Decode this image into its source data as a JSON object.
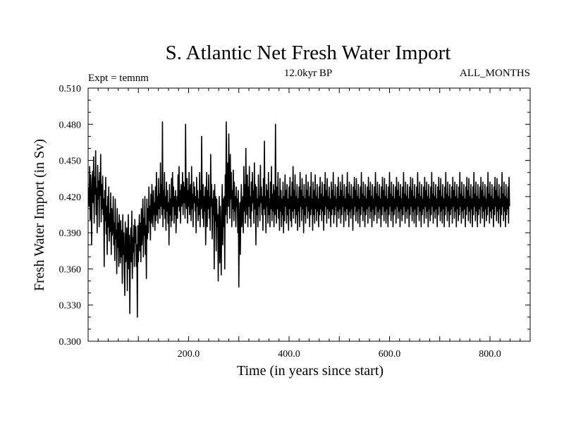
{
  "chart_data": {
    "type": "line",
    "title": "S. Atlantic Net Fresh Water Import",
    "subtitle_left": "Expt = temnm",
    "subtitle_center": "12.0kyr BP",
    "subtitle_right": "ALL_MONTHS",
    "xlabel": "Time (in years since start)",
    "ylabel": "Fresh Water Import (in Sv)",
    "xlim": [
      0,
      880
    ],
    "ylim": [
      0.3,
      0.51
    ],
    "x_ticks": [
      200,
      400,
      600,
      800
    ],
    "x_tick_labels": [
      "200.0",
      "400.0",
      "600.0",
      "800.0"
    ],
    "y_ticks": [
      0.3,
      0.33,
      0.36,
      0.39,
      0.42,
      0.45,
      0.48,
      0.51
    ],
    "y_tick_labels": [
      "0.300",
      "0.330",
      "0.360",
      "0.390",
      "0.420",
      "0.450",
      "0.480",
      "0.510"
    ],
    "series": [
      {
        "name": "Net fresh water import",
        "x_start": 1,
        "x_step": 1,
        "values": [
          0.428,
          0.412,
          0.445,
          0.401,
          0.438,
          0.419,
          0.38,
          0.432,
          0.441,
          0.415,
          0.453,
          0.398,
          0.436,
          0.422,
          0.458,
          0.405,
          0.427,
          0.39,
          0.446,
          0.418,
          0.433,
          0.395,
          0.44,
          0.421,
          0.455,
          0.399,
          0.43,
          0.41,
          0.437,
          0.405,
          0.418,
          0.362,
          0.425,
          0.4,
          0.436,
          0.389,
          0.412,
          0.372,
          0.42,
          0.395,
          0.428,
          0.383,
          0.406,
          0.391,
          0.423,
          0.372,
          0.41,
          0.388,
          0.395,
          0.42,
          0.38,
          0.398,
          0.367,
          0.418,
          0.385,
          0.392,
          0.356,
          0.41,
          0.378,
          0.398,
          0.362,
          0.405,
          0.389,
          0.365,
          0.4,
          0.37,
          0.392,
          0.348,
          0.405,
          0.372,
          0.39,
          0.358,
          0.338,
          0.399,
          0.366,
          0.378,
          0.394,
          0.342,
          0.38,
          0.405,
          0.36,
          0.388,
          0.323,
          0.371,
          0.394,
          0.366,
          0.408,
          0.352,
          0.386,
          0.374,
          0.396,
          0.362,
          0.401,
          0.382,
          0.395,
          0.362,
          0.38,
          0.32,
          0.396,
          0.366,
          0.389,
          0.405,
          0.375,
          0.398,
          0.366,
          0.41,
          0.38,
          0.395,
          0.418,
          0.37,
          0.402,
          0.388,
          0.42,
          0.372,
          0.396,
          0.352,
          0.418,
          0.385,
          0.41,
          0.39,
          0.428,
          0.4,
          0.412,
          0.384,
          0.422,
          0.398,
          0.43,
          0.408,
          0.395,
          0.425,
          0.405,
          0.415,
          0.392,
          0.428,
          0.4,
          0.44,
          0.405,
          0.42,
          0.398,
          0.435,
          0.41,
          0.422,
          0.402,
          0.448,
          0.412,
          0.43,
          0.405,
          0.482,
          0.395,
          0.425,
          0.41,
          0.44,
          0.402,
          0.42,
          0.392,
          0.432,
          0.408,
          0.425,
          0.398,
          0.415,
          0.38,
          0.43,
          0.405,
          0.418,
          0.395,
          0.435,
          0.4,
          0.44,
          0.412,
          0.428,
          0.398,
          0.42,
          0.405,
          0.425,
          0.39,
          0.41,
          0.42,
          0.402,
          0.438,
          0.412,
          0.445,
          0.408,
          0.425,
          0.398,
          0.43,
          0.412,
          0.418,
          0.44,
          0.405,
          0.432,
          0.415,
          0.428,
          0.402,
          0.48,
          0.42,
          0.41,
          0.435,
          0.398,
          0.425,
          0.412,
          0.44,
          0.405,
          0.418,
          0.43,
          0.4,
          0.445,
          0.41,
          0.422,
          0.395,
          0.432,
          0.415,
          0.428,
          0.408,
          0.42,
          0.39,
          0.436,
          0.412,
          0.425,
          0.4,
          0.418,
          0.405,
          0.44,
          0.395,
          0.425,
          0.41,
          0.47,
          0.418,
          0.402,
          0.43,
          0.395,
          0.42,
          0.408,
          0.428,
          0.38,
          0.415,
          0.44,
          0.395,
          0.425,
          0.41,
          0.438,
          0.402,
          0.42,
          0.392,
          0.455,
          0.412,
          0.43,
          0.385,
          0.418,
          0.405,
          0.425,
          0.36,
          0.43,
          0.4,
          0.42,
          0.375,
          0.418,
          0.395,
          0.405,
          0.35,
          0.398,
          0.42,
          0.365,
          0.412,
          0.385,
          0.355,
          0.408,
          0.43,
          0.38,
          0.418,
          0.395,
          0.42,
          0.36,
          0.438,
          0.405,
          0.482,
          0.425,
          0.398,
          0.448,
          0.412,
          0.472,
          0.43,
          0.402,
          0.455,
          0.418,
          0.44,
          0.395,
          0.425,
          0.41,
          0.442,
          0.4,
          0.432,
          0.408,
          0.42,
          0.395,
          0.428,
          0.412,
          0.418,
          0.39,
          0.425,
          0.345,
          0.398,
          0.415,
          0.372,
          0.408,
          0.43,
          0.395,
          0.412,
          0.42,
          0.39,
          0.445,
          0.408,
          0.43,
          0.398,
          0.46,
          0.418,
          0.405,
          0.438,
          0.395,
          0.428,
          0.412,
          0.445,
          0.402,
          0.42,
          0.395,
          0.432,
          0.408,
          0.44,
          0.415,
          0.425,
          0.398,
          0.448,
          0.41,
          0.43,
          0.38,
          0.428,
          0.405,
          0.418,
          0.395,
          0.438,
          0.412,
          0.42,
          0.4,
          0.446,
          0.415,
          0.428,
          0.405,
          0.42,
          0.392,
          0.435,
          0.41,
          0.466,
          0.405,
          0.42,
          0.39,
          0.43,
          0.412,
          0.425,
          0.398,
          0.44,
          0.405,
          0.418,
          0.395,
          0.432,
          0.41,
          0.445,
          0.4,
          0.422,
          0.408,
          0.43,
          0.395,
          0.425,
          0.405,
          0.48,
          0.415,
          0.398,
          0.428,
          0.41,
          0.44,
          0.402,
          0.42,
          0.392,
          0.435,
          0.408,
          0.425,
          0.395,
          0.418,
          0.405,
          0.432,
          0.39,
          0.42,
          0.4,
          0.438,
          0.412,
          0.425,
          0.398,
          0.43,
          0.405,
          0.418,
          0.392,
          0.428,
          0.41,
          0.436,
          0.4,
          0.42,
          0.395,
          0.432,
          0.408,
          0.445,
          0.402,
          0.425,
          0.41,
          0.438,
          0.398,
          0.42,
          0.405,
          0.43,
          0.392,
          0.418,
          0.408,
          0.428,
          0.395,
          0.44,
          0.412,
          0.425,
          0.4,
          0.435,
          0.41,
          0.42,
          0.39,
          0.43,
          0.405,
          0.418,
          0.398,
          0.438,
          0.412,
          0.425,
          0.402,
          0.432,
          0.408,
          0.42,
          0.395,
          0.428,
          0.405,
          0.44,
          0.41,
          0.418,
          0.392,
          0.432,
          0.405,
          0.425,
          0.398,
          0.438,
          0.41,
          0.42,
          0.4,
          0.43,
          0.408,
          0.418,
          0.395,
          0.428,
          0.405,
          0.436,
          0.41,
          0.422,
          0.4,
          0.432,
          0.408,
          0.42,
          0.392,
          0.43,
          0.405,
          0.44,
          0.412,
          0.425,
          0.398,
          0.435,
          0.41,
          0.42,
          0.402,
          0.428,
          0.408,
          0.418,
          0.395,
          0.432,
          0.405,
          0.425,
          0.41,
          0.44,
          0.398,
          0.42,
          0.405,
          0.43,
          0.412,
          0.418,
          0.395,
          0.428,
          0.408,
          0.436,
          0.402,
          0.42,
          0.41,
          0.432,
          0.398,
          0.425,
          0.405,
          0.438,
          0.412,
          0.42,
          0.395,
          0.43,
          0.408,
          0.418,
          0.4,
          0.428,
          0.41,
          0.44,
          0.405,
          0.422,
          0.395,
          0.432,
          0.408,
          0.42,
          0.402,
          0.43,
          0.41,
          0.418,
          0.392,
          0.428,
          0.405,
          0.436,
          0.412,
          0.425,
          0.4,
          0.435,
          0.408,
          0.42,
          0.398,
          0.43,
          0.41,
          0.418,
          0.395,
          0.428,
          0.405,
          0.44,
          0.412,
          0.422,
          0.4,
          0.432,
          0.408,
          0.42,
          0.395,
          0.43,
          0.405,
          0.418,
          0.41,
          0.428,
          0.398,
          0.436,
          0.412,
          0.425,
          0.402,
          0.432,
          0.408,
          0.42,
          0.395,
          0.43,
          0.41,
          0.418,
          0.4,
          0.428,
          0.405,
          0.44,
          0.412,
          0.422,
          0.398,
          0.432,
          0.408,
          0.42,
          0.402,
          0.43,
          0.41,
          0.418,
          0.395,
          0.428,
          0.405,
          0.436,
          0.412,
          0.425,
          0.4,
          0.435,
          0.408,
          0.42,
          0.398,
          0.43,
          0.41,
          0.418,
          0.395,
          0.428,
          0.405,
          0.44,
          0.412,
          0.422,
          0.4,
          0.432,
          0.408,
          0.42,
          0.395,
          0.43,
          0.405,
          0.418,
          0.41,
          0.428,
          0.398,
          0.436,
          0.412,
          0.425,
          0.402,
          0.432,
          0.408,
          0.42,
          0.395,
          0.43,
          0.41,
          0.418,
          0.4,
          0.428,
          0.405,
          0.44,
          0.412,
          0.422,
          0.398,
          0.432,
          0.408,
          0.42,
          0.402,
          0.43,
          0.41,
          0.418,
          0.395,
          0.428,
          0.405,
          0.436,
          0.412,
          0.425,
          0.4,
          0.435,
          0.408,
          0.42,
          0.398,
          0.43,
          0.41,
          0.418,
          0.395,
          0.428,
          0.405,
          0.44,
          0.412,
          0.422,
          0.4,
          0.432,
          0.408,
          0.42,
          0.395,
          0.43,
          0.405,
          0.418,
          0.41,
          0.428,
          0.398,
          0.436,
          0.412,
          0.425,
          0.402,
          0.432,
          0.408,
          0.42,
          0.395,
          0.43,
          0.41,
          0.418,
          0.4,
          0.428,
          0.405,
          0.44,
          0.412,
          0.422,
          0.398,
          0.432,
          0.408,
          0.42,
          0.402,
          0.43,
          0.41,
          0.418,
          0.395,
          0.428,
          0.405,
          0.436,
          0.412,
          0.425,
          0.4,
          0.435,
          0.408,
          0.42,
          0.398,
          0.43,
          0.41,
          0.418,
          0.395,
          0.428,
          0.405,
          0.44,
          0.412,
          0.422,
          0.4,
          0.432,
          0.408,
          0.42,
          0.395,
          0.43,
          0.405,
          0.418,
          0.41,
          0.428,
          0.398,
          0.436,
          0.412,
          0.425,
          0.402,
          0.432,
          0.408,
          0.42,
          0.395,
          0.43,
          0.41,
          0.418,
          0.4,
          0.428,
          0.405,
          0.44,
          0.412,
          0.422,
          0.398,
          0.432,
          0.408,
          0.42,
          0.402,
          0.43,
          0.41,
          0.418,
          0.395,
          0.428,
          0.405,
          0.436,
          0.412,
          0.425,
          0.4,
          0.435,
          0.408,
          0.42,
          0.398,
          0.43,
          0.41,
          0.418,
          0.395,
          0.428,
          0.405,
          0.44,
          0.412,
          0.422,
          0.4,
          0.432,
          0.408,
          0.42,
          0.395,
          0.43,
          0.405,
          0.418,
          0.41,
          0.428,
          0.398,
          0.436,
          0.412,
          0.425,
          0.402,
          0.432,
          0.408,
          0.42,
          0.395,
          0.43,
          0.41,
          0.418,
          0.4,
          0.428,
          0.405,
          0.44,
          0.412,
          0.422,
          0.398,
          0.432,
          0.408,
          0.42,
          0.402,
          0.43,
          0.41,
          0.418,
          0.395,
          0.428,
          0.405,
          0.436,
          0.412,
          0.425,
          0.4,
          0.435,
          0.408,
          0.42,
          0.398,
          0.43,
          0.41,
          0.418,
          0.395,
          0.428,
          0.405,
          0.44,
          0.412,
          0.422,
          0.4,
          0.432,
          0.408,
          0.42,
          0.395,
          0.43,
          0.405,
          0.418,
          0.41,
          0.428,
          0.398,
          0.436,
          0.412
        ]
      }
    ]
  },
  "colors": {
    "line": "#000000",
    "axis": "#000000",
    "background": "#ffffff"
  }
}
